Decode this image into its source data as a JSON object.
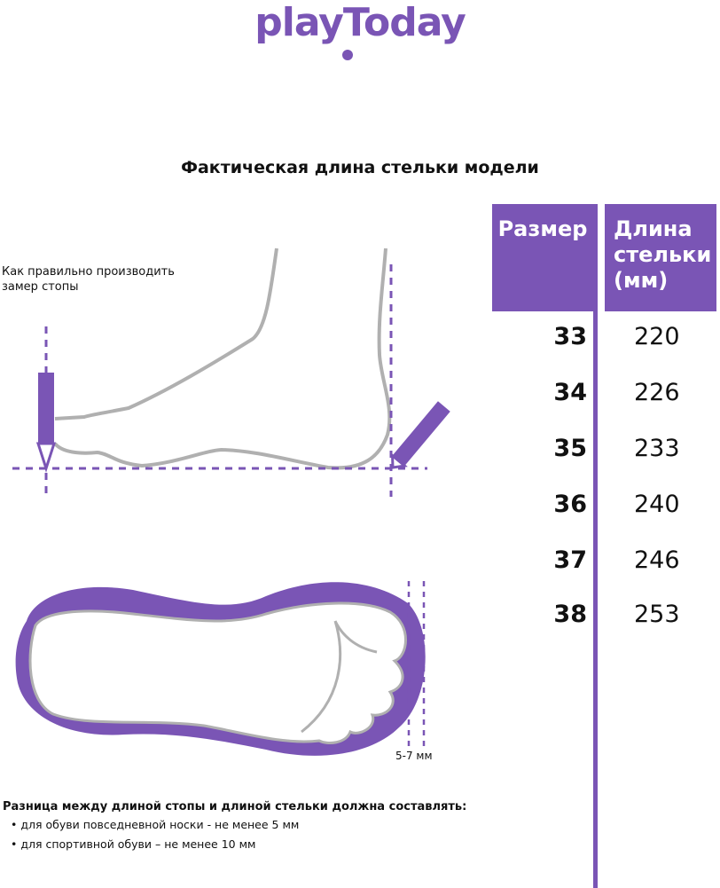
{
  "brand": {
    "logo_text": "playToday"
  },
  "title": "Фактическая длина стельки модели",
  "table": {
    "headers": [
      "Размер",
      "Длина стельки (мм)"
    ],
    "header_lines": [
      "Длина",
      "стельки",
      "(мм)"
    ],
    "rows": [
      {
        "size": "33",
        "length": "220"
      },
      {
        "size": "34",
        "length": "226"
      },
      {
        "size": "35",
        "length": "233"
      },
      {
        "size": "36",
        "length": "240"
      },
      {
        "size": "37",
        "length": "246"
      },
      {
        "size": "38",
        "length": "253"
      }
    ]
  },
  "howto": [
    "Как правильно производить",
    "замер стопы"
  ],
  "gap_label": "5-7 мм",
  "note": {
    "heading": "Разница между длиной стопы и длиной стельки должна составлять:",
    "bullets": [
      "•  для обуви повседневной носки -  не менее 5 мм",
      "•  для спортивной обуви – не менее 10 мм"
    ]
  },
  "colors": {
    "accent": "#7a55b5",
    "outline": "#b0b0b0"
  }
}
